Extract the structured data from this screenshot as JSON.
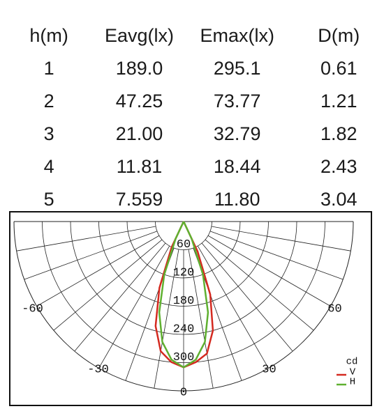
{
  "table": {
    "header": [
      "h(m)",
      "Eavg(lx)",
      "Emax(lx)",
      "D(m)"
    ],
    "rows": [
      [
        "1",
        "189.0",
        "295.1",
        "0.61"
      ],
      [
        "2",
        "47.25",
        "73.77",
        "1.21"
      ],
      [
        "3",
        "21.00",
        "32.79",
        "1.82"
      ],
      [
        "4",
        "11.81",
        "18.44",
        "2.43"
      ],
      [
        "5",
        "7.559",
        "11.80",
        "3.04"
      ]
    ]
  },
  "chart_data": {
    "type": "polar",
    "unit": "cd",
    "theta": [
      -30,
      -25,
      -20,
      -15,
      -10,
      -5,
      0,
      5,
      10,
      15,
      20,
      25,
      30
    ],
    "series": [
      {
        "name": "V",
        "color": "#d42a20",
        "values": [
          0,
          60,
          150,
          230,
          280,
          300,
          310,
          300,
          285,
          240,
          165,
          70,
          0
        ]
      },
      {
        "name": "H",
        "color": "#5fb030",
        "values": [
          0,
          40,
          120,
          200,
          260,
          295,
          310,
          295,
          260,
          200,
          120,
          40,
          0
        ]
      }
    ],
    "rlim": [
      0,
      360
    ],
    "rticks": [
      60,
      120,
      180,
      240,
      300
    ],
    "thetalim": [
      -90,
      90
    ],
    "thetaticks": [
      -60,
      -30,
      0,
      30,
      60
    ]
  }
}
